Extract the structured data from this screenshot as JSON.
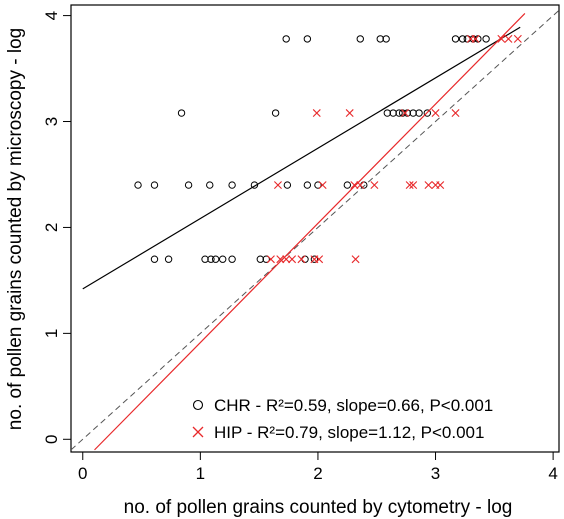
{
  "chart_data": {
    "type": "scatter",
    "xlabel": "no. of pollen grains counted by cytometry - log",
    "ylabel": "no. of pollen grains counted by microscopy - log",
    "xlim": [
      -0.1,
      4.05
    ],
    "ylim": [
      -0.12,
      4.1
    ],
    "xticks": [
      "0",
      "1",
      "2",
      "3",
      "4"
    ],
    "yticks": [
      "0",
      "1",
      "2",
      "3",
      "4"
    ],
    "grid": false,
    "legend_position": "bottom-right",
    "series": [
      {
        "name": "CHR - R²=0.59, slope=0.66, P<0.001",
        "marker": "circle",
        "color": "#000000",
        "points": [
          [
            1.73,
            3.78
          ],
          [
            1.91,
            3.78
          ],
          [
            2.36,
            3.78
          ],
          [
            2.53,
            3.78
          ],
          [
            2.58,
            3.78
          ],
          [
            3.17,
            3.78
          ],
          [
            3.23,
            3.78
          ],
          [
            3.27,
            3.78
          ],
          [
            3.32,
            3.78
          ],
          [
            3.36,
            3.78
          ],
          [
            3.43,
            3.78
          ],
          [
            0.84,
            3.08
          ],
          [
            1.64,
            3.08
          ],
          [
            2.59,
            3.08
          ],
          [
            2.64,
            3.08
          ],
          [
            2.69,
            3.08
          ],
          [
            2.72,
            3.08
          ],
          [
            2.76,
            3.08
          ],
          [
            2.81,
            3.08
          ],
          [
            2.86,
            3.08
          ],
          [
            2.93,
            3.08
          ],
          [
            0.47,
            2.4
          ],
          [
            0.61,
            2.4
          ],
          [
            0.9,
            2.4
          ],
          [
            1.08,
            2.4
          ],
          [
            1.27,
            2.4
          ],
          [
            1.46,
            2.4
          ],
          [
            1.74,
            2.4
          ],
          [
            1.91,
            2.4
          ],
          [
            2.0,
            2.4
          ],
          [
            2.25,
            2.4
          ],
          [
            2.39,
            2.4
          ],
          [
            0.61,
            1.7
          ],
          [
            0.73,
            1.7
          ],
          [
            1.04,
            1.7
          ],
          [
            1.09,
            1.7
          ],
          [
            1.13,
            1.7
          ],
          [
            1.19,
            1.7
          ],
          [
            1.27,
            1.7
          ],
          [
            1.51,
            1.7
          ],
          [
            1.56,
            1.7
          ],
          [
            1.89,
            1.7
          ],
          [
            1.97,
            1.7
          ]
        ],
        "fit": {
          "x": [
            0.0,
            3.72
          ],
          "y": [
            1.42,
            3.89
          ]
        }
      },
      {
        "name": "HIP - R²=0.79, slope=1.12, P<0.001",
        "marker": "x",
        "color": "#e8292b",
        "points": [
          [
            3.3,
            3.78
          ],
          [
            3.34,
            3.78
          ],
          [
            3.56,
            3.78
          ],
          [
            3.62,
            3.78
          ],
          [
            3.7,
            3.78
          ],
          [
            1.99,
            3.08
          ],
          [
            2.27,
            3.08
          ],
          [
            2.74,
            3.08
          ],
          [
            3.0,
            3.08
          ],
          [
            3.17,
            3.08
          ],
          [
            1.66,
            2.4
          ],
          [
            2.04,
            2.4
          ],
          [
            2.31,
            2.4
          ],
          [
            2.36,
            2.4
          ],
          [
            2.48,
            2.4
          ],
          [
            2.78,
            2.4
          ],
          [
            2.81,
            2.4
          ],
          [
            2.94,
            2.4
          ],
          [
            3.0,
            2.4
          ],
          [
            3.04,
            2.4
          ],
          [
            1.6,
            1.7
          ],
          [
            1.68,
            1.7
          ],
          [
            1.73,
            1.7
          ],
          [
            1.78,
            1.7
          ],
          [
            1.86,
            1.7
          ],
          [
            1.97,
            1.7
          ],
          [
            2.01,
            1.7
          ],
          [
            2.32,
            1.7
          ]
        ],
        "fit": {
          "x": [
            0.1,
            3.76
          ],
          "y": [
            -0.1,
            4.02
          ]
        }
      }
    ],
    "reference_line": {
      "x": [
        -0.1,
        4.05
      ],
      "y": [
        -0.1,
        4.05
      ],
      "color": "#555555",
      "style": "dashed"
    }
  }
}
